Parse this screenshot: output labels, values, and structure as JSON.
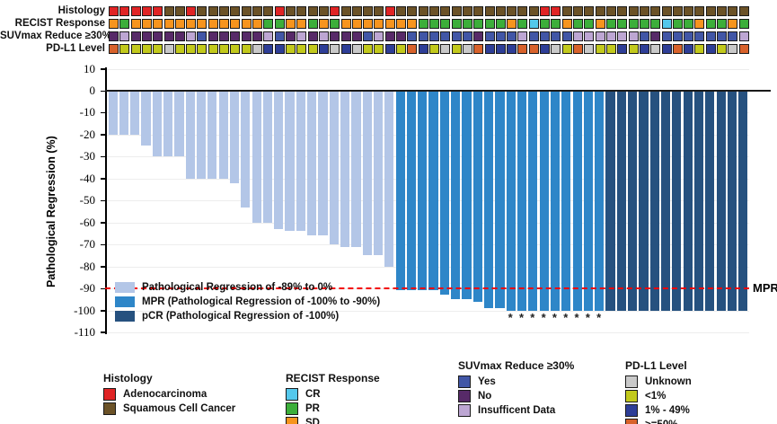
{
  "chart_data": {
    "type": "bar",
    "subtype": "waterfall-regression",
    "ylabel": "Pathological Regression (%)",
    "ylim": [
      -110,
      10
    ],
    "ytick_step": 10,
    "grid": true,
    "values": [
      -20,
      -20,
      -20,
      -25,
      -30,
      -30,
      -30,
      -40,
      -40,
      -40,
      -40,
      -42,
      -53,
      -60,
      -60,
      -63,
      -64,
      -64,
      -66,
      -66,
      -70,
      -71,
      -71,
      -75,
      -75,
      -80,
      -91,
      -91,
      -91,
      -91,
      -93,
      -95,
      -95,
      -96,
      -99,
      -99,
      -100,
      -100,
      -100,
      -100,
      -100,
      -100,
      -100,
      -100,
      -100,
      -100,
      -100,
      -100,
      -100,
      -100,
      -100,
      -100,
      -100,
      -100,
      -100,
      -100,
      -100,
      -100
    ],
    "groups": [
      "light",
      "light",
      "light",
      "light",
      "light",
      "light",
      "light",
      "light",
      "light",
      "light",
      "light",
      "light",
      "light",
      "light",
      "light",
      "light",
      "light",
      "light",
      "light",
      "light",
      "light",
      "light",
      "light",
      "light",
      "light",
      "light",
      "mpr",
      "mpr",
      "mpr",
      "mpr",
      "mpr",
      "mpr",
      "mpr",
      "mpr",
      "mpr",
      "mpr",
      "mpr",
      "mpr",
      "mpr",
      "mpr",
      "mpr",
      "mpr",
      "mpr",
      "mpr",
      "mpr",
      "pcr",
      "pcr",
      "pcr",
      "pcr",
      "pcr",
      "pcr",
      "pcr",
      "pcr",
      "pcr",
      "pcr",
      "pcr",
      "pcr",
      "pcr"
    ],
    "asterisk_bars": [
      37,
      38,
      39,
      40,
      41,
      42,
      43,
      44,
      45
    ],
    "asterisk_symbol": "*",
    "bar_colors": {
      "light": "#b3c6e7",
      "mpr": "#2e86c8",
      "pcr": "#26517f"
    },
    "reference_line": {
      "value": -90,
      "label": "MPR",
      "color": "#f30000",
      "style": "dashed"
    }
  },
  "in_plot_legend": [
    {
      "color": "#b3c6e7",
      "label": "Pathological Regression of -89% to 0%"
    },
    {
      "color": "#2e86c8",
      "label": "MPR (Pathological Regression of -100% to -90%)"
    },
    {
      "color": "#26517f",
      "label": "pCR (Pathological Regression of -100%)"
    }
  ],
  "annotations": {
    "rows": [
      {
        "label": "Histology",
        "key": "histology",
        "values": [
          "A",
          "A",
          "A",
          "A",
          "A",
          "S",
          "S",
          "A",
          "S",
          "S",
          "S",
          "S",
          "S",
          "S",
          "S",
          "A",
          "S",
          "S",
          "S",
          "S",
          "A",
          "S",
          "S",
          "S",
          "S",
          "A",
          "S",
          "S",
          "S",
          "S",
          "S",
          "S",
          "S",
          "S",
          "S",
          "S",
          "S",
          "S",
          "S",
          "A",
          "A",
          "S",
          "S",
          "S",
          "S",
          "S",
          "S",
          "S",
          "S",
          "S",
          "S",
          "S",
          "S",
          "S",
          "S",
          "S",
          "S",
          "S"
        ]
      },
      {
        "label": "RECIST Response",
        "key": "recist",
        "values": [
          "S",
          "P",
          "S",
          "S",
          "S",
          "S",
          "S",
          "S",
          "S",
          "S",
          "S",
          "S",
          "S",
          "S",
          "P",
          "P",
          "S",
          "S",
          "P",
          "S",
          "P",
          "S",
          "S",
          "S",
          "S",
          "S",
          "S",
          "S",
          "P",
          "P",
          "P",
          "P",
          "P",
          "P",
          "P",
          "P",
          "S",
          "P",
          "C",
          "P",
          "P",
          "S",
          "P",
          "P",
          "S",
          "P",
          "P",
          "P",
          "P",
          "P",
          "C",
          "P",
          "P",
          "S",
          "P",
          "P",
          "S",
          "P"
        ]
      },
      {
        "label": "SUVmax Reduce ≥30%",
        "key": "suvmax",
        "values": [
          "N",
          "I",
          "N",
          "N",
          "N",
          "N",
          "N",
          "I",
          "Y",
          "N",
          "N",
          "N",
          "N",
          "N",
          "I",
          "Y",
          "N",
          "I",
          "N",
          "I",
          "N",
          "N",
          "N",
          "Y",
          "I",
          "N",
          "N",
          "Y",
          "Y",
          "Y",
          "Y",
          "Y",
          "Y",
          "N",
          "Y",
          "Y",
          "Y",
          "I",
          "Y",
          "Y",
          "Y",
          "Y",
          "I",
          "I",
          "I",
          "I",
          "I",
          "I",
          "Y",
          "N",
          "Y",
          "Y",
          "Y",
          "Y",
          "Y",
          "Y",
          "Y",
          "I"
        ]
      },
      {
        "label": "PD-L1 Level",
        "key": "pdl1",
        "values": [
          "O",
          "Y",
          "Y",
          "Y",
          "Y",
          "U",
          "Y",
          "Y",
          "Y",
          "Y",
          "Y",
          "Y",
          "Y",
          "U",
          "B",
          "B",
          "Y",
          "Y",
          "Y",
          "B",
          "U",
          "B",
          "U",
          "Y",
          "Y",
          "B",
          "Y",
          "O",
          "B",
          "Y",
          "U",
          "Y",
          "U",
          "O",
          "B",
          "B",
          "B",
          "O",
          "O",
          "B",
          "U",
          "Y",
          "O",
          "U",
          "Y",
          "Y",
          "B",
          "Y",
          "B",
          "U",
          "B",
          "O",
          "B",
          "Y",
          "B",
          "Y",
          "U",
          "O"
        ]
      }
    ],
    "palettes": {
      "histology": {
        "A": "#e02425",
        "S": "#6b5227"
      },
      "recist": {
        "S": "#f7941e",
        "P": "#3cae3a",
        "C": "#54c8ec"
      },
      "suvmax": {
        "Y": "#4156a6",
        "N": "#572a68",
        "I": "#bda6d3"
      },
      "pdl1": {
        "U": "#c9c9c9",
        "Y": "#c2c91c",
        "B": "#2e3e97",
        "O": "#d8622b"
      }
    }
  },
  "bottom_legends": [
    {
      "title": "Histology",
      "items": [
        {
          "color": "#e02425",
          "label": "Adenocarcinoma"
        },
        {
          "color": "#6b5227",
          "label": "Squamous Cell Cancer"
        }
      ]
    },
    {
      "title": "RECIST Response",
      "items": [
        {
          "color": "#54c8ec",
          "label": "CR"
        },
        {
          "color": "#3cae3a",
          "label": "PR"
        },
        {
          "color": "#f7941e",
          "label": "SD"
        }
      ]
    },
    {
      "title": "SUVmax Reduce ≥30%",
      "items": [
        {
          "color": "#4156a6",
          "label": "Yes"
        },
        {
          "color": "#572a68",
          "label": "No"
        },
        {
          "color": "#bda6d3",
          "label": "Insufficent Data"
        }
      ]
    },
    {
      "title": "PD-L1 Level",
      "items": [
        {
          "color": "#c9c9c9",
          "label": "Unknown"
        },
        {
          "color": "#c2c91c",
          "label": "<1%"
        },
        {
          "color": "#2e3e97",
          "label": "1% - 49%"
        },
        {
          "color": "#d8622b",
          "label": ">=50%"
        }
      ]
    }
  ]
}
